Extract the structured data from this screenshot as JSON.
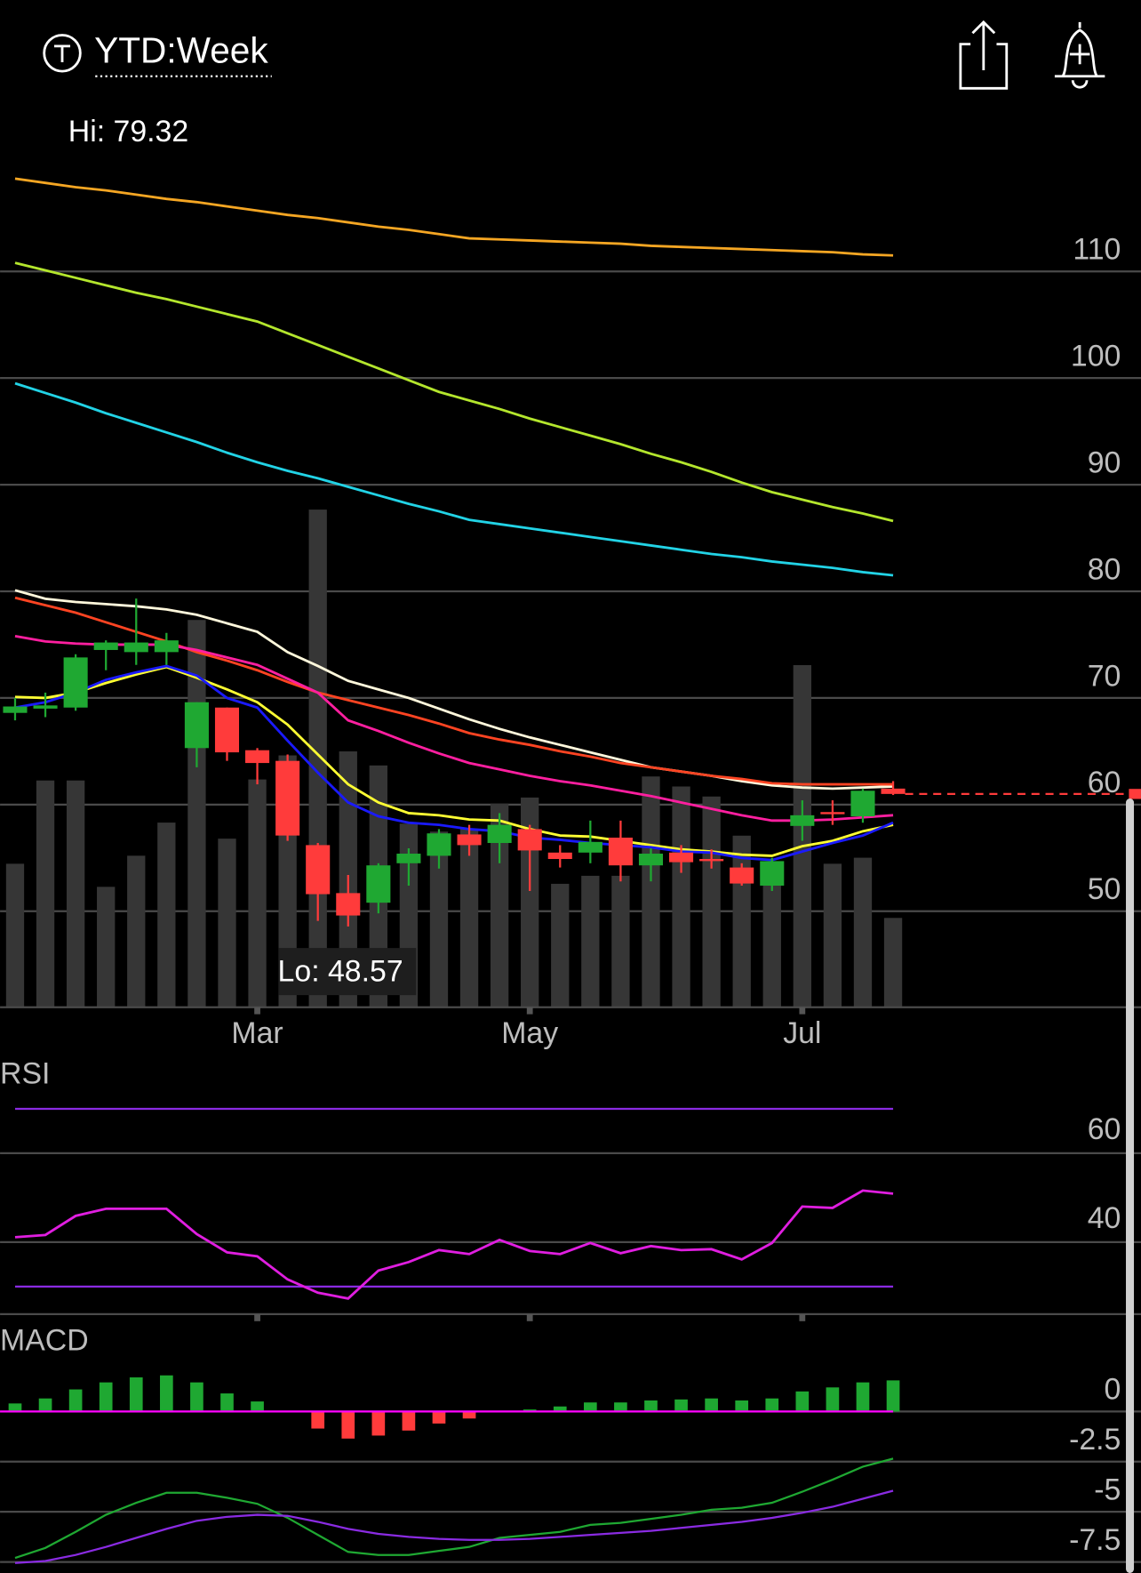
{
  "header": {
    "title": "YTD:Week"
  },
  "chart_data": [
    {
      "type": "candlestick",
      "hi_label": "Hi: 79.32",
      "lo_label": "Lo: 48.57",
      "categories": [
        null,
        null,
        null,
        null,
        null,
        null,
        null,
        null,
        "Mar",
        null,
        null,
        null,
        null,
        null,
        null,
        null,
        null,
        "May",
        null,
        null,
        null,
        null,
        null,
        null,
        null,
        null,
        "Jul",
        null,
        null,
        null
      ],
      "open": [
        68.6,
        69.0,
        69.1,
        74.5,
        74.3,
        74.3,
        65.3,
        69.1,
        65.1,
        64.1,
        56.2,
        51.7,
        50.8,
        54.5,
        55.2,
        57.2,
        56.4,
        57.7,
        55.5,
        55.5,
        56.9,
        54.3,
        55.5,
        54.9,
        54.1,
        52.4,
        58.0,
        59.3,
        58.9,
        61.5
      ],
      "high": [
        70.0,
        70.5,
        74.1,
        75.4,
        79.32,
        76.1,
        69.6,
        69.1,
        65.3,
        64.7,
        56.4,
        53.4,
        54.5,
        55.9,
        57.7,
        58.1,
        59.2,
        58.1,
        56.2,
        58.5,
        58.5,
        55.9,
        56.2,
        55.8,
        54.5,
        55.0,
        60.4,
        60.4,
        61.5,
        62.2
      ],
      "low": [
        67.9,
        68.2,
        68.8,
        72.6,
        73.1,
        73.1,
        63.5,
        64.1,
        61.9,
        56.6,
        49.1,
        48.57,
        49.8,
        52.4,
        54.0,
        55.2,
        54.5,
        51.9,
        54.1,
        54.5,
        52.8,
        52.8,
        53.6,
        54.0,
        52.4,
        51.9,
        56.6,
        58.1,
        58.3,
        60.9
      ],
      "close": [
        69.2,
        69.3,
        73.8,
        75.2,
        75.2,
        75.4,
        69.6,
        64.9,
        63.9,
        57.1,
        51.6,
        49.6,
        54.3,
        55.4,
        57.3,
        56.2,
        58.1,
        55.7,
        54.9,
        56.5,
        54.3,
        55.4,
        54.6,
        54.7,
        52.6,
        54.7,
        59.0,
        59.1,
        61.3,
        61.0
      ],
      "up_color": "#1fa832",
      "down_color": "#ff3b3b",
      "volume": {
        "color": "#363636",
        "vlim": [
          0,
          100
        ],
        "values": [
          28.6,
          45.2,
          45.2,
          24,
          30.2,
          36.8,
          77.2,
          33.6,
          45.4,
          50.2,
          99.2,
          51,
          48.2,
          36.6,
          35,
          35.6,
          40.6,
          41.8,
          24.6,
          26.2,
          26.2,
          46,
          44,
          42,
          34.2,
          25.6,
          68.2,
          28.6,
          29.8,
          17.8
        ]
      },
      "series": [
        {
          "color": "#f5a623",
          "values": [
            118.7,
            118.3,
            117.9,
            117.6,
            117.2,
            116.8,
            116.5,
            116.1,
            115.7,
            115.3,
            115.0,
            114.6,
            114.2,
            113.9,
            113.5,
            113.1,
            113.0,
            112.9,
            112.8,
            112.7,
            112.6,
            112.4,
            112.3,
            112.2,
            112.1,
            112.0,
            111.9,
            111.8,
            111.6,
            111.5
          ]
        },
        {
          "color": "#b4e62d",
          "values": [
            110.8,
            110.1,
            109.4,
            108.7,
            108.0,
            107.4,
            106.7,
            106.0,
            105.3,
            104.2,
            103.1,
            102.0,
            100.9,
            99.8,
            98.7,
            97.9,
            97.1,
            96.2,
            95.4,
            94.6,
            93.8,
            92.9,
            92.1,
            91.2,
            90.2,
            89.3,
            88.6,
            87.9,
            87.3,
            86.6
          ]
        },
        {
          "color": "#22d3e6",
          "values": [
            99.5,
            98.6,
            97.7,
            96.7,
            95.8,
            94.9,
            94.0,
            93.0,
            92.1,
            91.3,
            90.6,
            89.8,
            89.0,
            88.2,
            87.5,
            86.7,
            86.3,
            85.9,
            85.5,
            85.1,
            84.7,
            84.3,
            83.9,
            83.5,
            83.2,
            82.8,
            82.5,
            82.2,
            81.8,
            81.5
          ]
        },
        {
          "color": "#fff8dc",
          "values": [
            80.1,
            79.3,
            79.0,
            78.8,
            78.6,
            78.3,
            77.8,
            77.0,
            76.2,
            74.3,
            73.0,
            71.6,
            70.8,
            70.0,
            69.0,
            68.0,
            67.1,
            66.3,
            65.6,
            64.9,
            64.2,
            63.5,
            63.1,
            62.7,
            62.2,
            61.8,
            61.6,
            61.5,
            61.6,
            61.7
          ]
        },
        {
          "color": "#ff4422",
          "values": [
            79.4,
            78.7,
            78.0,
            77.1,
            76.2,
            75.3,
            74.3,
            73.5,
            72.6,
            71.5,
            70.5,
            69.8,
            69.1,
            68.4,
            67.6,
            66.7,
            66.1,
            65.6,
            65.0,
            64.5,
            63.9,
            63.5,
            63.1,
            62.7,
            62.4,
            62.0,
            61.9,
            61.9,
            61.9,
            61.9
          ]
        },
        {
          "color": "#ff1fa0",
          "values": [
            75.8,
            75.3,
            75.1,
            75.0,
            75.0,
            75.0,
            74.5,
            73.8,
            73.1,
            71.8,
            70.5,
            67.9,
            66.9,
            65.8,
            64.8,
            63.9,
            63.3,
            62.7,
            62.2,
            61.8,
            61.3,
            60.8,
            60.2,
            59.6,
            59.0,
            58.5,
            58.5,
            58.6,
            58.8,
            59.0
          ]
        },
        {
          "color": "#ffff33",
          "values": [
            70.1,
            70.0,
            70.5,
            71.4,
            72.2,
            72.9,
            71.9,
            70.8,
            69.6,
            67.5,
            64.7,
            61.9,
            60.2,
            59.2,
            59.0,
            58.6,
            58.5,
            57.7,
            57.1,
            57.0,
            56.6,
            56.2,
            55.8,
            55.6,
            55.3,
            55.2,
            56.1,
            56.6,
            57.5,
            58.1
          ]
        },
        {
          "color": "#1a1aff",
          "values": [
            69.1,
            69.6,
            70.5,
            71.7,
            72.4,
            73.0,
            72.1,
            70.0,
            69.1,
            66.0,
            63.0,
            60.2,
            58.9,
            58.3,
            58.1,
            57.7,
            57.5,
            56.9,
            56.7,
            56.4,
            56.2,
            56.0,
            55.6,
            55.5,
            55.0,
            54.8,
            55.6,
            56.4,
            57.1,
            58.3
          ]
        }
      ],
      "ylim": [
        41,
        122
      ],
      "yticks": [
        50,
        60,
        70,
        80,
        90,
        100,
        110
      ],
      "grid": true
    },
    {
      "type": "line",
      "title": "RSI",
      "series": [
        {
          "color": "#e01ee0",
          "values": [
            41.1,
            41.6,
            45.9,
            47.5,
            47.5,
            47.5,
            41.8,
            37.7,
            36.8,
            31.6,
            28.6,
            27.3,
            33.6,
            35.5,
            38.2,
            37.3,
            40.5,
            38.0,
            37.3,
            39.8,
            37.5,
            39.1,
            38.2,
            38.4,
            36.1,
            39.8,
            48.0,
            47.7,
            51.6,
            50.9
          ]
        }
      ],
      "bands": [
        30,
        70
      ],
      "band_color": "#8a2be2",
      "ylim": [
        24,
        80
      ],
      "yticks": [
        40,
        60
      ],
      "grid": true
    },
    {
      "type": "macd",
      "title": "MACD",
      "histogram": {
        "up_color": "#1fa832",
        "down_color": "#ff3b3b",
        "values": [
          0.4,
          0.65,
          1.1,
          1.45,
          1.7,
          1.8,
          1.45,
          0.9,
          0.5,
          -0.05,
          -0.85,
          -1.35,
          -1.2,
          -0.95,
          -0.6,
          -0.35,
          -0.05,
          0.1,
          0.25,
          0.45,
          0.45,
          0.55,
          0.6,
          0.65,
          0.55,
          0.65,
          1.0,
          1.2,
          1.45,
          1.55
        ]
      },
      "series": [
        {
          "color": "#1fa832",
          "values": [
            -7.3,
            -6.8,
            -6.0,
            -5.15,
            -4.55,
            -4.05,
            -4.05,
            -4.3,
            -4.6,
            -5.3,
            -6.15,
            -7.0,
            -7.15,
            -7.15,
            -6.95,
            -6.75,
            -6.3,
            -6.15,
            -6.0,
            -5.65,
            -5.55,
            -5.35,
            -5.15,
            -4.9,
            -4.8,
            -4.55,
            -4.0,
            -3.4,
            -2.75,
            -2.35
          ]
        },
        {
          "color": "#8a2be2",
          "values": [
            -7.55,
            -7.45,
            -7.15,
            -6.75,
            -6.3,
            -5.85,
            -5.45,
            -5.25,
            -5.15,
            -5.2,
            -5.5,
            -5.85,
            -6.1,
            -6.25,
            -6.35,
            -6.4,
            -6.4,
            -6.35,
            -6.25,
            -6.15,
            -6.05,
            -5.95,
            -5.8,
            -5.65,
            -5.5,
            -5.3,
            -5.05,
            -4.75,
            -4.35,
            -3.95
          ]
        }
      ],
      "zero_color": "#ff00ff",
      "ylim": [
        -8,
        4
      ],
      "yticks": [
        0,
        -2.5,
        -5,
        -7.5
      ],
      "grid": true
    }
  ]
}
